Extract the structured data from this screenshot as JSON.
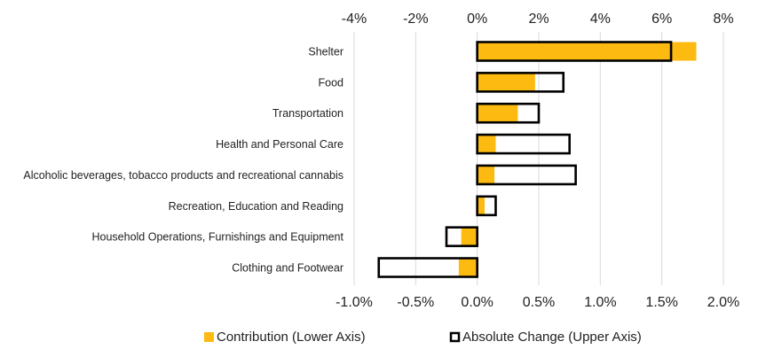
{
  "chart_data": {
    "type": "bar",
    "orientation": "horizontal",
    "categories": [
      "Shelter",
      "Food",
      "Transportation",
      "Health and Personal Care",
      "Alcoholic beverages, tobacco products and recreational cannabis",
      "Recreation, Education and Reading",
      "Household Operations, Furnishings and Equipment",
      "Clothing and Footwear"
    ],
    "series": [
      {
        "name": "Contribution (Lower Axis)",
        "axis": "lower",
        "color": "#FDBB11",
        "style": "filled",
        "values": [
          1.78,
          0.47,
          0.33,
          0.15,
          0.14,
          0.06,
          -0.13,
          -0.15
        ]
      },
      {
        "name": "Absolute Change (Upper Axis)",
        "axis": "upper",
        "color": "#000000",
        "style": "outline",
        "values": [
          6.3,
          2.8,
          2.0,
          3.0,
          3.2,
          0.6,
          -1.0,
          -3.2
        ]
      }
    ],
    "upper_axis": {
      "ticks": [
        -4,
        -2,
        0,
        2,
        4,
        6,
        8
      ],
      "tick_labels": [
        "-4%",
        "-2%",
        "0%",
        "2%",
        "4%",
        "6%",
        "8%"
      ],
      "range": [
        -4,
        8
      ]
    },
    "lower_axis": {
      "ticks": [
        -1.0,
        -0.5,
        0.0,
        0.5,
        1.0,
        1.5,
        2.0
      ],
      "tick_labels": [
        "-1.0%",
        "-0.5%",
        "0.0%",
        "0.5%",
        "1.0%",
        "1.5%",
        "2.0%"
      ],
      "range": [
        -1.0,
        2.0
      ]
    },
    "grid": true,
    "legend_position": "bottom",
    "title": "",
    "xlabel": "",
    "ylabel": ""
  }
}
